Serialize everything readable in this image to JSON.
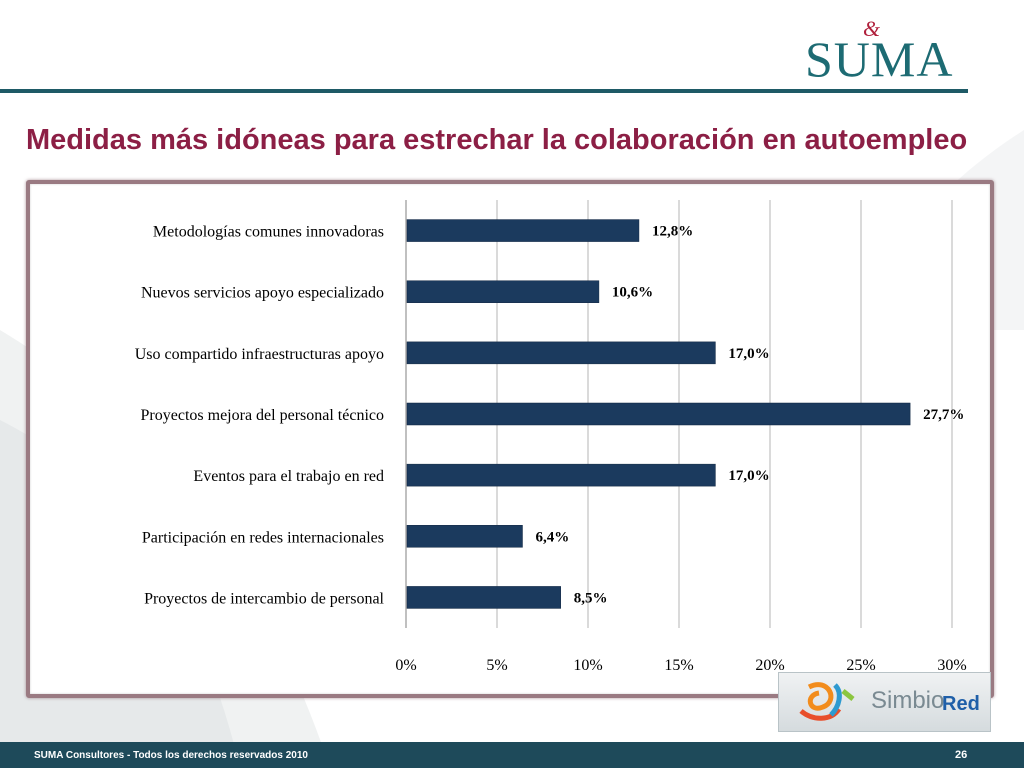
{
  "header": {
    "logo_amp": "&",
    "logo_text": "SUMA"
  },
  "title": "Medidas más idóneas para estrechar la colaboración en autoempleo",
  "chart_data": {
    "type": "bar",
    "orientation": "horizontal",
    "categories": [
      "Metodologías comunes innovadoras",
      "Nuevos servicios apoyo especializado",
      "Uso compartido infraestructuras apoyo",
      "Proyectos mejora del personal técnico",
      "Eventos para el trabajo en red",
      "Participación en redes internacionales",
      "Proyectos de intercambio de personal"
    ],
    "values": [
      12.8,
      10.6,
      17.0,
      27.7,
      17.0,
      6.4,
      8.5
    ],
    "data_labels": [
      "12,8%",
      "10,6%",
      "17,0%",
      "27,7%",
      "17,0%",
      "6,4%",
      "8,5%"
    ],
    "xlim": [
      0,
      30
    ],
    "xticks": [
      0,
      5,
      10,
      15,
      20,
      25,
      30
    ],
    "xtick_labels": [
      "0%",
      "5%",
      "10%",
      "15%",
      "20%",
      "25%",
      "30%"
    ],
    "grid": "vertical",
    "bar_color": "#1b3a5e"
  },
  "badge": {
    "brand_main": "Simbio",
    "brand_accent": "Red"
  },
  "footer": {
    "text": "SUMA Consultores - Todos los derechos reservados 2010",
    "page_number": "26"
  }
}
